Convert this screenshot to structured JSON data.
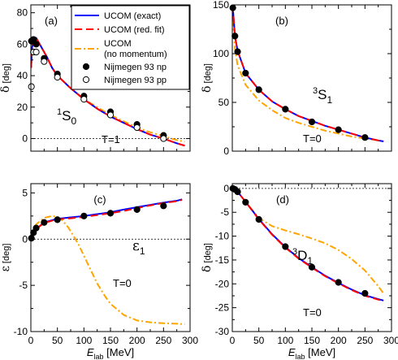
{
  "colors": {
    "exact": "#0000ff",
    "fit": "#ff0000",
    "nomom": "#ffa500",
    "np": "#000000",
    "pp": "#000000"
  },
  "legend": {
    "exact": "UCOM (exact)",
    "fit": "UCOM (red. fit)",
    "nomom_line1": "UCOM",
    "nomom_line2": "(no momentum)",
    "np": "Nijmegen 93 np",
    "pp": "Nijmegen 93 pp"
  },
  "chart_data": [
    {
      "type": "line",
      "panel_label": "(a)",
      "wave_sup": "1",
      "wave_letter": "S",
      "wave_sub": "0",
      "isospin": "T=1",
      "ylabel_symbol": "δ",
      "ylabel_unit": " [deg]",
      "xlim": [
        0,
        300
      ],
      "ylim": [
        -8,
        85
      ],
      "yticks": [
        0,
        20,
        40,
        60,
        80
      ],
      "xticks": [
        0,
        50,
        100,
        150,
        200,
        250,
        300
      ],
      "series": [
        {
          "key": "exact",
          "x": [
            0.5,
            2,
            5,
            10,
            20,
            30,
            40,
            50,
            75,
            100,
            125,
            150,
            175,
            200,
            225,
            250,
            275,
            290
          ],
          "y": [
            45,
            57,
            64,
            64,
            58,
            52,
            45,
            40,
            32,
            25,
            19,
            14,
            10,
            6,
            2.5,
            0,
            -3,
            -4.5
          ]
        },
        {
          "key": "fit",
          "x": [
            0.5,
            2,
            5,
            10,
            20,
            30,
            40,
            50,
            75,
            100,
            125,
            150,
            175,
            200,
            225,
            250,
            275,
            290
          ],
          "y": [
            45,
            57,
            64,
            64,
            58,
            52,
            45,
            40,
            32,
            25,
            19,
            14,
            10,
            6,
            2.5,
            0,
            -3,
            -4.5
          ]
        },
        {
          "key": "nomom",
          "x": [
            0.5,
            2,
            5,
            10,
            20,
            30,
            40,
            50,
            75,
            100,
            125,
            150,
            175,
            200,
            225,
            250,
            275,
            290
          ],
          "y": [
            45,
            57,
            64,
            64,
            58,
            52,
            45,
            40,
            32,
            25,
            20,
            15,
            11,
            7,
            4,
            1.5,
            -1,
            -2
          ]
        },
        {
          "key": "np",
          "marker": "filled",
          "x": [
            1,
            5,
            10,
            25,
            50,
            100,
            150,
            200,
            250
          ],
          "y": [
            62,
            63,
            60,
            51,
            41,
            27,
            17,
            9,
            2
          ]
        },
        {
          "key": "pp",
          "marker": "open",
          "x": [
            1,
            5,
            10,
            25,
            50,
            100,
            150,
            200,
            250
          ],
          "y": [
            33,
            55,
            55,
            49,
            39,
            25,
            15,
            7,
            0
          ]
        }
      ]
    },
    {
      "type": "line",
      "panel_label": "(b)",
      "wave_sup": "3",
      "wave_letter": "S",
      "wave_sub": "1",
      "isospin": "T=0",
      "ylabel_symbol": "δ",
      "ylabel_unit": " [deg]",
      "xlim": [
        0,
        300
      ],
      "ylim": [
        0,
        150
      ],
      "yticks": [
        0,
        50,
        100,
        150
      ],
      "xticks": [
        0,
        50,
        100,
        150,
        200,
        250,
        300
      ],
      "series": [
        {
          "key": "exact",
          "x": [
            0.5,
            1,
            2,
            5,
            10,
            25,
            50,
            75,
            100,
            125,
            150,
            175,
            200,
            225,
            250,
            275,
            285
          ],
          "y": [
            150,
            147,
            140,
            118,
            103,
            80,
            63,
            51,
            43,
            36,
            31,
            26,
            22,
            18,
            14,
            11,
            10
          ]
        },
        {
          "key": "fit",
          "x": [
            0.5,
            1,
            2,
            5,
            10,
            25,
            50,
            75,
            100,
            125,
            150,
            175,
            200,
            225,
            250,
            275,
            285
          ],
          "y": [
            150,
            147,
            140,
            118,
            103,
            80,
            63,
            51,
            43,
            36,
            31,
            26,
            22,
            18,
            14,
            11,
            10
          ]
        },
        {
          "key": "nomom",
          "x": [
            0.5,
            1,
            2,
            5,
            10,
            25,
            50,
            75,
            100,
            125,
            150,
            175,
            200,
            225,
            250,
            275,
            285
          ],
          "y": [
            148,
            140,
            128,
            105,
            88,
            68,
            52,
            42,
            34,
            29,
            25,
            21,
            18,
            15,
            13,
            11,
            10
          ]
        },
        {
          "key": "np",
          "marker": "filled",
          "x": [
            1,
            5,
            10,
            25,
            50,
            100,
            150,
            200,
            250
          ],
          "y": [
            147,
            118,
            102,
            80,
            63,
            43,
            30,
            22,
            14
          ]
        }
      ]
    },
    {
      "type": "line",
      "panel_label": "(c)",
      "wave_letter": "ε",
      "wave_sub": "1",
      "isospin": "T=0",
      "ylabel_symbol": "ε",
      "ylabel_unit": " [deg]",
      "xlim": [
        0,
        300
      ],
      "ylim": [
        -10,
        6
      ],
      "yticks": [
        -10,
        -5,
        0,
        5
      ],
      "xticks": [
        0,
        50,
        100,
        150,
        200,
        250,
        300
      ],
      "series": [
        {
          "key": "exact",
          "x": [
            0.5,
            2,
            5,
            10,
            25,
            50,
            75,
            100,
            125,
            150,
            175,
            200,
            225,
            250,
            275,
            285
          ],
          "y": [
            0.05,
            0.3,
            0.7,
            1.1,
            1.8,
            2.2,
            2.35,
            2.5,
            2.7,
            2.9,
            3.2,
            3.45,
            3.7,
            3.95,
            4.15,
            4.3
          ]
        },
        {
          "key": "fit",
          "x": [
            0.5,
            2,
            5,
            10,
            25,
            50,
            75,
            100,
            125,
            150,
            175,
            200,
            225,
            250,
            275,
            285
          ],
          "y": [
            0.05,
            0.3,
            0.7,
            1.1,
            1.75,
            2.15,
            2.25,
            2.4,
            2.6,
            2.8,
            3.05,
            3.35,
            3.65,
            3.9,
            4.1,
            4.25
          ]
        },
        {
          "key": "nomom",
          "x": [
            0.5,
            2,
            5,
            10,
            25,
            40,
            50,
            60,
            70,
            80,
            90,
            100,
            110,
            125,
            140,
            150,
            175,
            200,
            225,
            250,
            275,
            290
          ],
          "y": [
            0.05,
            0.4,
            1.0,
            1.6,
            2.3,
            2.5,
            2.4,
            2.0,
            1.3,
            0.4,
            -0.6,
            -1.8,
            -3.0,
            -4.8,
            -6.2,
            -7.0,
            -8.2,
            -8.8,
            -9.0,
            -9.1,
            -9.15,
            -9.2
          ]
        },
        {
          "key": "np",
          "marker": "filled",
          "x": [
            1,
            5,
            10,
            25,
            50,
            100,
            150,
            200,
            250
          ],
          "y": [
            0.1,
            0.7,
            1.2,
            1.8,
            2.1,
            2.5,
            2.8,
            3.2,
            3.6
          ]
        }
      ]
    },
    {
      "type": "line",
      "panel_label": "(d)",
      "wave_sup": "3",
      "wave_letter": "D",
      "wave_sub": "1",
      "isospin": "T=0",
      "ylabel_symbol": "δ",
      "ylabel_unit": " [deg]",
      "xlim": [
        0,
        300
      ],
      "ylim": [
        -30,
        1
      ],
      "yticks": [
        -30,
        -25,
        -20,
        -15,
        -10,
        -5,
        0
      ],
      "xticks": [
        0,
        50,
        100,
        150,
        200,
        250,
        300
      ],
      "series": [
        {
          "key": "exact",
          "x": [
            0,
            5,
            10,
            25,
            50,
            75,
            100,
            125,
            150,
            175,
            200,
            225,
            250,
            275,
            285
          ],
          "y": [
            0,
            -0.2,
            -0.7,
            -2.8,
            -6.4,
            -9.6,
            -12.3,
            -14.6,
            -16.5,
            -18.3,
            -19.8,
            -21.2,
            -22.4,
            -23.2,
            -23.5
          ]
        },
        {
          "key": "fit",
          "x": [
            0,
            5,
            10,
            25,
            50,
            75,
            100,
            125,
            150,
            175,
            200,
            225,
            250,
            275,
            285
          ],
          "y": [
            0,
            -0.2,
            -0.7,
            -2.8,
            -6.5,
            -9.7,
            -12.4,
            -14.7,
            -16.6,
            -18.4,
            -19.9,
            -21.3,
            -22.5,
            -23.3,
            -23.6
          ]
        },
        {
          "key": "nomom",
          "x": [
            0,
            5,
            10,
            25,
            50,
            75,
            100,
            125,
            150,
            175,
            200,
            225,
            250,
            275,
            285
          ],
          "y": [
            0,
            -0.2,
            -0.7,
            -2.8,
            -6.2,
            -7.9,
            -8.8,
            -9.6,
            -10.5,
            -11.5,
            -12.9,
            -14.8,
            -17.2,
            -20.5,
            -22.0
          ]
        },
        {
          "key": "np",
          "marker": "filled",
          "x": [
            1,
            5,
            10,
            25,
            50,
            100,
            150,
            200,
            250
          ],
          "y": [
            0,
            -0.2,
            -0.7,
            -2.9,
            -6.5,
            -12.2,
            -16.5,
            -19.7,
            -22.0
          ]
        }
      ]
    }
  ],
  "xlabel_main": "E",
  "xlabel_sub": "lab",
  "xlabel_unit": " [MeV]"
}
